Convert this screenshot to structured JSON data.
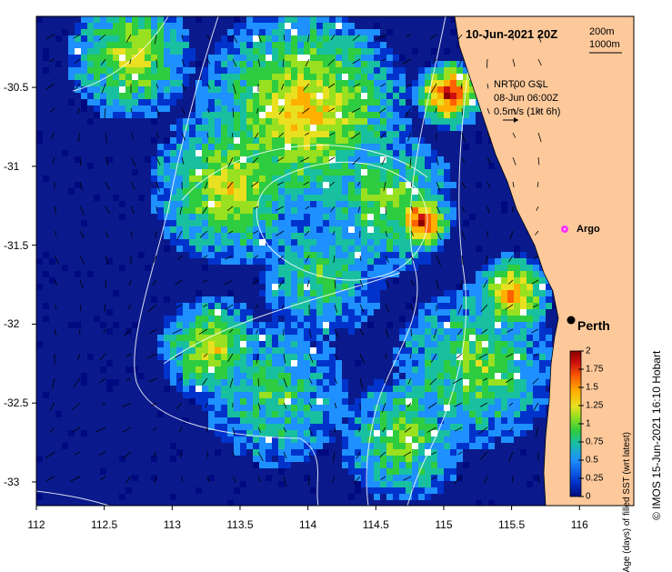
{
  "title": "10-Jun-2021 20Z",
  "depth_legend": [
    "200m",
    "1000m"
  ],
  "model_info": [
    "NRT00 GSL",
    "08-Jun 06:00Z",
    "0.5m/s (1kt 6h)"
  ],
  "argo_label": "Argo",
  "city_label": "Perth",
  "x_axis": {
    "ticks": [
      "112",
      "112.5",
      "113",
      "113.5",
      "114",
      "114.5",
      "115",
      "115.5",
      "116"
    ],
    "range": [
      112,
      116.4
    ]
  },
  "y_axis": {
    "ticks": [
      "-30.5",
      "-31",
      "-31.5",
      "-32",
      "-32.5",
      "-33"
    ],
    "range": [
      -33.15,
      -30.05
    ]
  },
  "colorbar": {
    "title": "Age (days) of filled SST (wrt latest)",
    "ticks": [
      "2",
      "1.75",
      "1.5",
      "1.25",
      "1",
      "0.75",
      "0.5",
      "0.25",
      "0"
    ],
    "range": [
      0,
      2
    ]
  },
  "credit": "© IMOS 15-Jun-2021 16:10 Hobart",
  "colors": {
    "land": "#fdc99b",
    "ocean_deep": "#0a1a8c",
    "argo": "#ff33ff",
    "contour": "#ffffff",
    "colorbar_stops": [
      "#000a80",
      "#0033cc",
      "#1e90ff",
      "#18c0a0",
      "#2ecc40",
      "#98e020",
      "#e8e020",
      "#ffb000",
      "#ff6000",
      "#cc1010",
      "#8b0000"
    ]
  },
  "places": [
    {
      "name": "Argo",
      "lon": 115.88,
      "lat": -31.45,
      "type": "argo-float"
    },
    {
      "name": "Perth",
      "lon": 115.86,
      "lat": -31.95,
      "type": "city"
    }
  ]
}
